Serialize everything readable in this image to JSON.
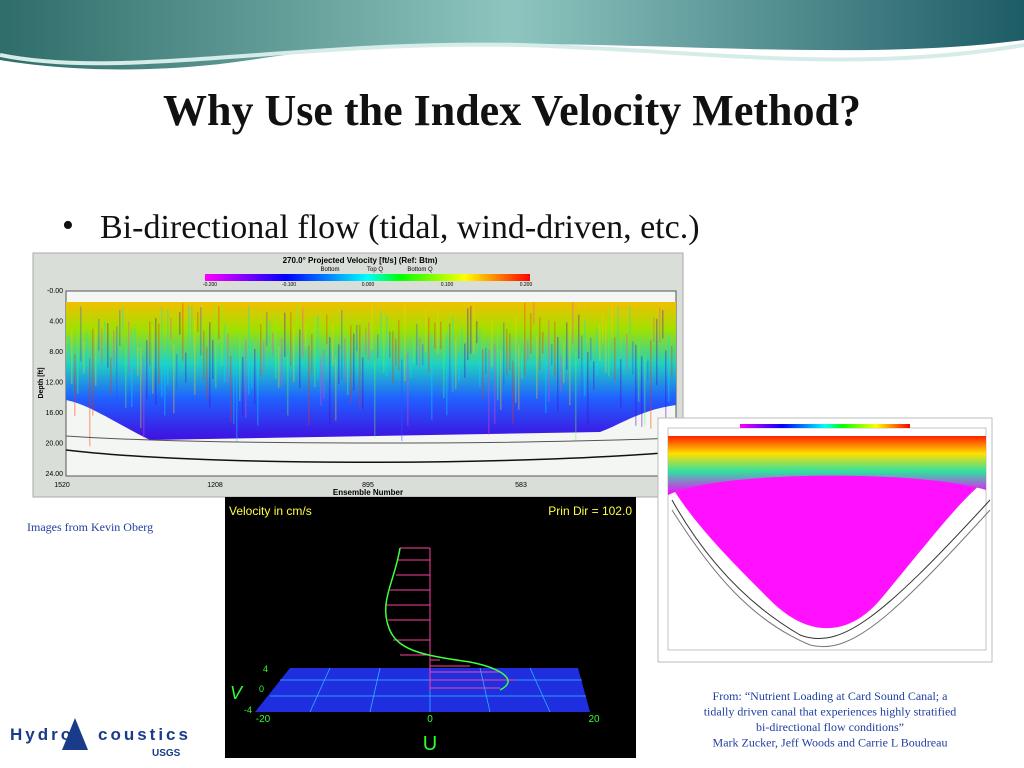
{
  "title": "Why Use the Index Velocity Method?",
  "bullets": [
    "Bi-directional flow (tidal, wind-driven, etc.)"
  ],
  "credit": "Images from Kevin Oberg",
  "citation": [
    "From: “Nutrient Loading at Card Sound Canal; a",
    "tidally driven canal that experiences highly stratified",
    "bi-directional flow conditions”",
    "Mark Zucker, Jeff Woods and Carrie L Boudreau"
  ],
  "figure1": {
    "title": "270.0° Projected Velocity [ft/s] (Ref: Btm)",
    "legend": [
      "Bottom",
      "Top Q",
      "Bottom Q"
    ],
    "colorbar": [
      "-0.200",
      "-0.100",
      "0.000",
      "0.100",
      "0.200"
    ],
    "ylabel": "Depth [ft]",
    "yticks": [
      "-0.00",
      "4.00",
      "8.00",
      "12.00",
      "16.00",
      "20.00",
      "24.00"
    ],
    "xlabel": "Ensemble Number",
    "xticks": [
      "1520",
      "1208",
      "895",
      "583"
    ]
  },
  "figure2": {
    "header_left": "Velocity in cm/s",
    "header_right": "Prin Dir = 102.0",
    "v_label": "V",
    "u_label": "U",
    "v_ticks": [
      "4",
      "0",
      "-4"
    ],
    "u_ticks": [
      "-20",
      "0",
      "20"
    ]
  },
  "logo": {
    "left": "Hydro",
    "right": "coustics",
    "sub": "USGS"
  }
}
